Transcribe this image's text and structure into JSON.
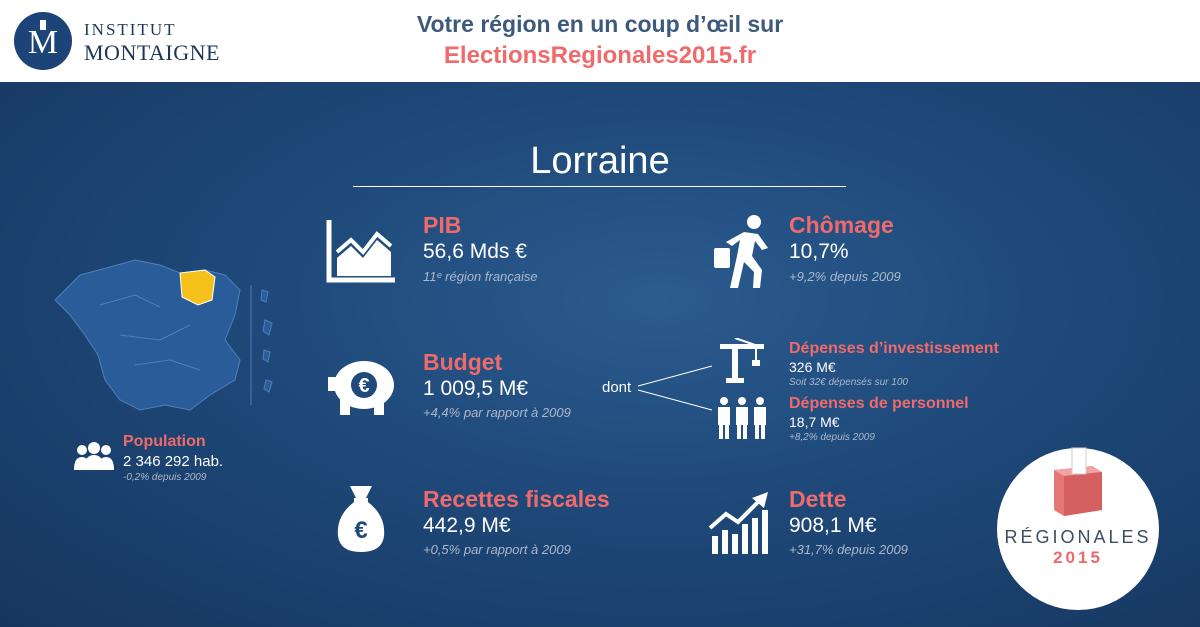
{
  "header": {
    "logo_line1": "INSTITUT",
    "logo_line2": "MONTAIGNE",
    "tagline": "Votre région en un coup d’œil sur",
    "site": "ElectionsRegionales2015.fr"
  },
  "region": {
    "name": "Lorraine"
  },
  "population": {
    "label": "Population",
    "value": "2 346 292 hab.",
    "note": "-0,2% depuis 2009"
  },
  "pib": {
    "label": "PIB",
    "value": "56,6 Mds €",
    "note": "11ᵉ région française"
  },
  "chomage": {
    "label": "Chômage",
    "value": "10,7%",
    "note": "+9,2% depuis 2009"
  },
  "budget": {
    "label": "Budget",
    "value": "1 009,5 M€",
    "note": "+4,4% par rapport à 2009",
    "dont": "dont"
  },
  "investissement": {
    "label": "Dépenses d’investissement",
    "value": "326 M€",
    "note": "Soit 32€ dépensés sur 100"
  },
  "personnel": {
    "label": "Dépenses de personnel",
    "value": "18,7 M€",
    "note": "+8,2% depuis 2009"
  },
  "recettes": {
    "label": "Recettes fiscales",
    "value": "442,9 M€",
    "note": "+0,5% par rapport à 2009"
  },
  "dette": {
    "label": "Dette",
    "value": "908,1 M€",
    "note": "+31,7% depuis 2009"
  },
  "badge": {
    "line1": "RÉGIONALES",
    "line2": "2015"
  },
  "colors": {
    "accent": "#ef6a6a",
    "highlight": "#f5c11b",
    "navy": "#1c3f6e",
    "map": "#2a5c9a"
  },
  "icons": [
    "logo-m-icon",
    "france-map-icon",
    "people-icon",
    "chart-icon",
    "walking-man-icon",
    "piggy-bank-icon",
    "crane-icon",
    "workers-icon",
    "money-bag-icon",
    "rising-chart-icon",
    "ballot-box-icon"
  ]
}
